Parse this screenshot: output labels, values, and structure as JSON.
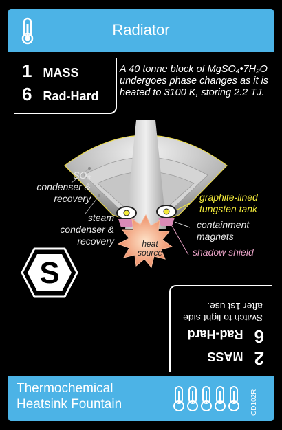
{
  "header": {
    "title": "Radiator",
    "icon": "thermometer-icon"
  },
  "stats": {
    "mass_num": "1",
    "mass_label": "MASS",
    "radhard_num": "6",
    "radhard_label": "Rad-Hard"
  },
  "description": "A 40 tonne block of MgSO₄•7H₂O undergoes phase changes as it is heated to 3100 K, storing 2.2 TJ.",
  "diagram_labels": {
    "so3": "SO₃ condenser & recovery",
    "steam": "steam condenser & recovery",
    "graphite": "graphite-lined tungsten tank",
    "magnets": "containment magnets",
    "shadow": "shadow shield",
    "heat": "heat source"
  },
  "symbol": {
    "letter": "S",
    "icon": "hexagon-s-icon"
  },
  "flip_side": {
    "mass_num": "2",
    "mass_label": "MASS",
    "radhard_num": "6",
    "radhard_label": "Rad-Hard",
    "note": "Switch to light side after 1st use."
  },
  "footer": {
    "name_line1": "Thermochemical",
    "name_line2": "Heatsink Fountain",
    "code": "CD102R",
    "pip_icon": "thermometer-outline-icon"
  },
  "colors": {
    "accent": "#4cb3e6",
    "graphite_label": "#f3ea3a",
    "shadow_label": "#e9a2c6",
    "heat_burst": "#f2a07a"
  }
}
